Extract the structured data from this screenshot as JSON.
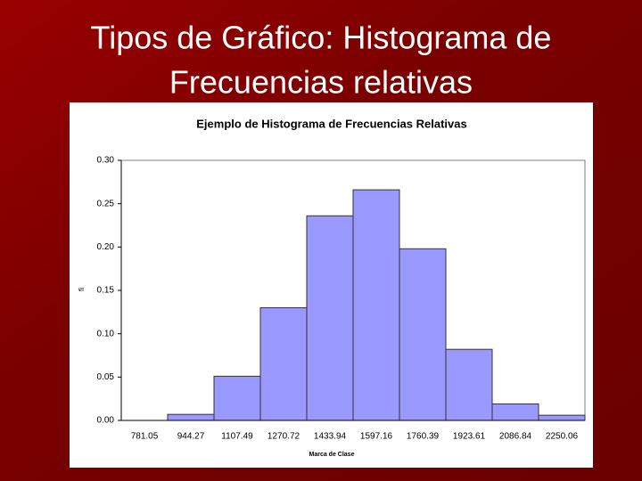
{
  "slide": {
    "title_lines": [
      "Tipos de Gráfico: Histograma de",
      "Frecuencias relativas"
    ]
  },
  "chart_data": {
    "type": "bar",
    "title": "Ejemplo de Histograma de Frecuencias Relativas",
    "x_label": "Marca de Clase",
    "y_label": "fi",
    "categories": [
      "781.05",
      "944.27",
      "1107.49",
      "1270.72",
      "1433.94",
      "1597.16",
      "1760.39",
      "1923.61",
      "2086.84",
      "2250.06"
    ],
    "values": [
      0,
      0.007,
      0.051,
      0.13,
      0.236,
      0.266,
      0.198,
      0.082,
      0.019,
      0.006
    ],
    "color": "#9999ff",
    "ylim": [
      0,
      0.3
    ],
    "yticks": [
      {
        "value": 0,
        "label": "0.00"
      },
      {
        "value": 0.05,
        "label": "0.05"
      },
      {
        "value": 0.1,
        "label": "0.10"
      },
      {
        "value": 0.15,
        "label": "0.15"
      },
      {
        "value": 0.2,
        "label": "0.20"
      },
      {
        "value": 0.25,
        "label": "0.25"
      },
      {
        "value": 0.3,
        "label": "0.30"
      }
    ],
    "grid": false
  }
}
